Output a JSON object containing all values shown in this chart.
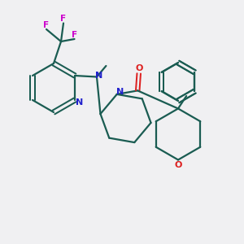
{
  "bg_color": "#f0f0f2",
  "bond_color": "#1a5c52",
  "nitrogen_color": "#2020cc",
  "oxygen_color": "#dd2020",
  "fluorine_color": "#cc00cc",
  "carbonyl_color": "#dd2020",
  "figsize": [
    3.0,
    3.0
  ],
  "dpi": 100,
  "xlim": [
    0,
    10
  ],
  "ylim": [
    0,
    10
  ]
}
